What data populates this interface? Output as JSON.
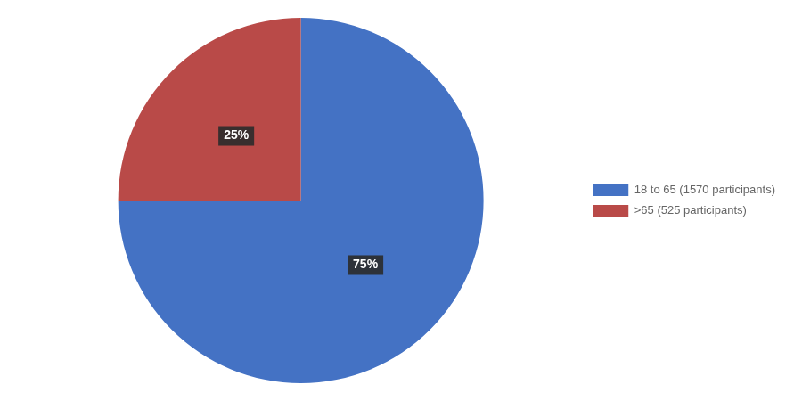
{
  "chart_data": {
    "type": "pie",
    "categories": [
      "18 to 65 (1570 participants)",
      ">65 (525 participants)"
    ],
    "values": [
      75,
      25
    ],
    "value_labels": [
      "75%",
      "25%"
    ],
    "colors": [
      "#4472C4",
      "#B94A48"
    ],
    "data_labels": true,
    "legend": "right"
  }
}
